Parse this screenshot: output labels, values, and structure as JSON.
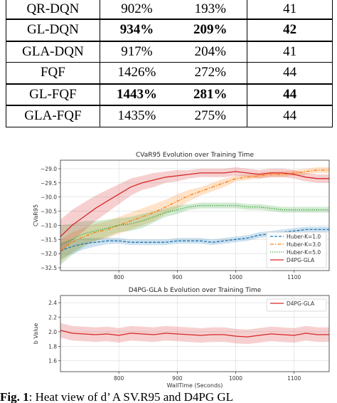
{
  "table": {
    "rows": [
      {
        "name": "QR-DQN",
        "v1": "902%",
        "v2": "193%",
        "v3": "41",
        "bold": false
      },
      {
        "name": "GL-DQN",
        "v1": "934%",
        "v2": "209%",
        "v3": "42",
        "bold": true
      },
      {
        "name": "GLA-DQN",
        "v1": "917%",
        "v2": "204%",
        "v3": "41",
        "bold": false
      },
      {
        "name": "FQF",
        "v1": "1426%",
        "v2": "272%",
        "v3": "44",
        "bold": false
      },
      {
        "name": "GL-FQF",
        "v1": "1443%",
        "v2": "281%",
        "v3": "44",
        "bold": true
      },
      {
        "name": "GLA-FQF",
        "v1": "1435%",
        "v2": "275%",
        "v3": "44",
        "bold": false
      }
    ]
  },
  "chart_data": [
    {
      "type": "line",
      "title": "CVaR95 Evolution over Training Time",
      "ylabel": "CVaR95",
      "xlabel": "",
      "xlim": [
        700,
        1160
      ],
      "ylim": [
        -32.6,
        -28.7
      ],
      "xticks": [
        800,
        900,
        1000,
        1100
      ],
      "yticks": [
        -29.0,
        -29.5,
        -30.0,
        -30.5,
        -31.0,
        -31.5,
        -32.0,
        -32.5
      ],
      "ytick_labels": [
        "−29.0",
        "−29.5",
        "−30.0",
        "−30.5",
        "−31.0",
        "−31.5",
        "−32.0",
        "−32.5"
      ],
      "grid": true,
      "legend_position": "bottom-right",
      "x": [
        700,
        720,
        740,
        760,
        780,
        800,
        820,
        840,
        860,
        880,
        900,
        920,
        940,
        960,
        980,
        1000,
        1020,
        1040,
        1060,
        1080,
        1100,
        1120,
        1140,
        1160
      ],
      "series": [
        {
          "name": "Huber-K=1.0",
          "color": "#1f77b4",
          "dash": "dashed",
          "values": [
            -31.9,
            -31.75,
            -31.65,
            -31.6,
            -31.55,
            -31.55,
            -31.6,
            -31.6,
            -31.6,
            -31.6,
            -31.55,
            -31.55,
            -31.55,
            -31.6,
            -31.55,
            -31.5,
            -31.45,
            -31.35,
            -31.3,
            -31.25,
            -31.2,
            -31.15,
            -31.15,
            -31.15
          ],
          "band": [
            0.3,
            0.25,
            0.2,
            0.15,
            0.12,
            0.1,
            0.1,
            0.1,
            0.1,
            0.1,
            0.1,
            0.1,
            0.1,
            0.1,
            0.1,
            0.1,
            0.1,
            0.1,
            0.1,
            0.1,
            0.1,
            0.1,
            0.1,
            0.1
          ]
        },
        {
          "name": "Huber-K=3.0",
          "color": "#ff7f0e",
          "dash": "dashdot",
          "values": [
            -31.9,
            -31.6,
            -31.4,
            -31.25,
            -31.15,
            -31.0,
            -30.85,
            -30.7,
            -30.55,
            -30.35,
            -30.15,
            -29.95,
            -29.8,
            -29.65,
            -29.5,
            -29.35,
            -29.3,
            -29.25,
            -29.2,
            -29.2,
            -29.15,
            -29.1,
            -29.05,
            -29.05
          ],
          "band": [
            0.4,
            0.35,
            0.3,
            0.3,
            0.3,
            0.3,
            0.3,
            0.3,
            0.3,
            0.25,
            0.25,
            0.2,
            0.15,
            0.15,
            0.15,
            0.1,
            0.1,
            0.1,
            0.1,
            0.1,
            0.1,
            0.1,
            0.1,
            0.1
          ]
        },
        {
          "name": "Huber-K=5.0",
          "color": "#2ca02c",
          "dash": "dotted",
          "values": [
            -31.7,
            -31.5,
            -31.3,
            -31.2,
            -31.1,
            -31.0,
            -30.95,
            -30.85,
            -30.7,
            -30.55,
            -30.45,
            -30.35,
            -30.3,
            -30.3,
            -30.3,
            -30.3,
            -30.35,
            -30.35,
            -30.4,
            -30.45,
            -30.45,
            -30.45,
            -30.45,
            -30.45
          ],
          "band": [
            0.7,
            0.55,
            0.45,
            0.35,
            0.3,
            0.25,
            0.25,
            0.25,
            0.2,
            0.15,
            0.15,
            0.1,
            0.1,
            0.1,
            0.1,
            0.1,
            0.1,
            0.1,
            0.1,
            0.1,
            0.1,
            0.1,
            0.1,
            0.1
          ]
        },
        {
          "name": "D4PG-GLA",
          "color": "#d62728",
          "dash": "solid",
          "values": [
            -31.4,
            -31.0,
            -30.7,
            -30.4,
            -30.15,
            -29.9,
            -29.65,
            -29.5,
            -29.4,
            -29.3,
            -29.25,
            -29.2,
            -29.15,
            -29.15,
            -29.15,
            -29.1,
            -29.15,
            -29.2,
            -29.15,
            -29.15,
            -29.2,
            -29.3,
            -29.35,
            -29.35
          ],
          "band": [
            0.6,
            0.55,
            0.5,
            0.45,
            0.4,
            0.35,
            0.3,
            0.25,
            0.25,
            0.2,
            0.2,
            0.15,
            0.15,
            0.15,
            0.15,
            0.15,
            0.15,
            0.15,
            0.15,
            0.15,
            0.15,
            0.15,
            0.15,
            0.15
          ]
        }
      ]
    },
    {
      "type": "line",
      "title": "D4PG-GLA b Evolution over Training Time",
      "ylabel": "b Value",
      "xlabel": "WallTime (Seconds)",
      "xlim": [
        700,
        1160
      ],
      "ylim": [
        1.45,
        2.5
      ],
      "xticks": [
        800,
        900,
        1000,
        1100
      ],
      "yticks": [
        1.6,
        1.8,
        2.0,
        2.2,
        2.4
      ],
      "ytick_labels": [
        "1.6",
        "1.8",
        "2.0",
        "2.2",
        "2.4"
      ],
      "grid": true,
      "legend_position": "top-right",
      "x": [
        700,
        720,
        740,
        760,
        780,
        800,
        820,
        840,
        860,
        880,
        900,
        920,
        940,
        960,
        980,
        1000,
        1020,
        1040,
        1060,
        1080,
        1100,
        1120,
        1140,
        1160
      ],
      "series": [
        {
          "name": "D4PG-GLA",
          "color": "#d62728",
          "dash": "solid",
          "values": [
            2.02,
            1.98,
            1.97,
            1.96,
            1.97,
            1.95,
            1.98,
            1.97,
            1.96,
            1.98,
            1.97,
            1.96,
            1.95,
            1.96,
            1.96,
            1.94,
            1.93,
            1.95,
            1.97,
            1.96,
            1.95,
            1.98,
            1.96,
            1.96
          ],
          "band": [
            0.1,
            0.1,
            0.1,
            0.1,
            0.1,
            0.1,
            0.1,
            0.1,
            0.1,
            0.1,
            0.1,
            0.1,
            0.1,
            0.1,
            0.1,
            0.1,
            0.1,
            0.1,
            0.1,
            0.1,
            0.1,
            0.1,
            0.1,
            0.1
          ]
        }
      ]
    }
  ],
  "caption": {
    "prefix": "Fig. 1",
    "text": ": Heat view of d’ A SV.R95 and D4PG GL"
  }
}
